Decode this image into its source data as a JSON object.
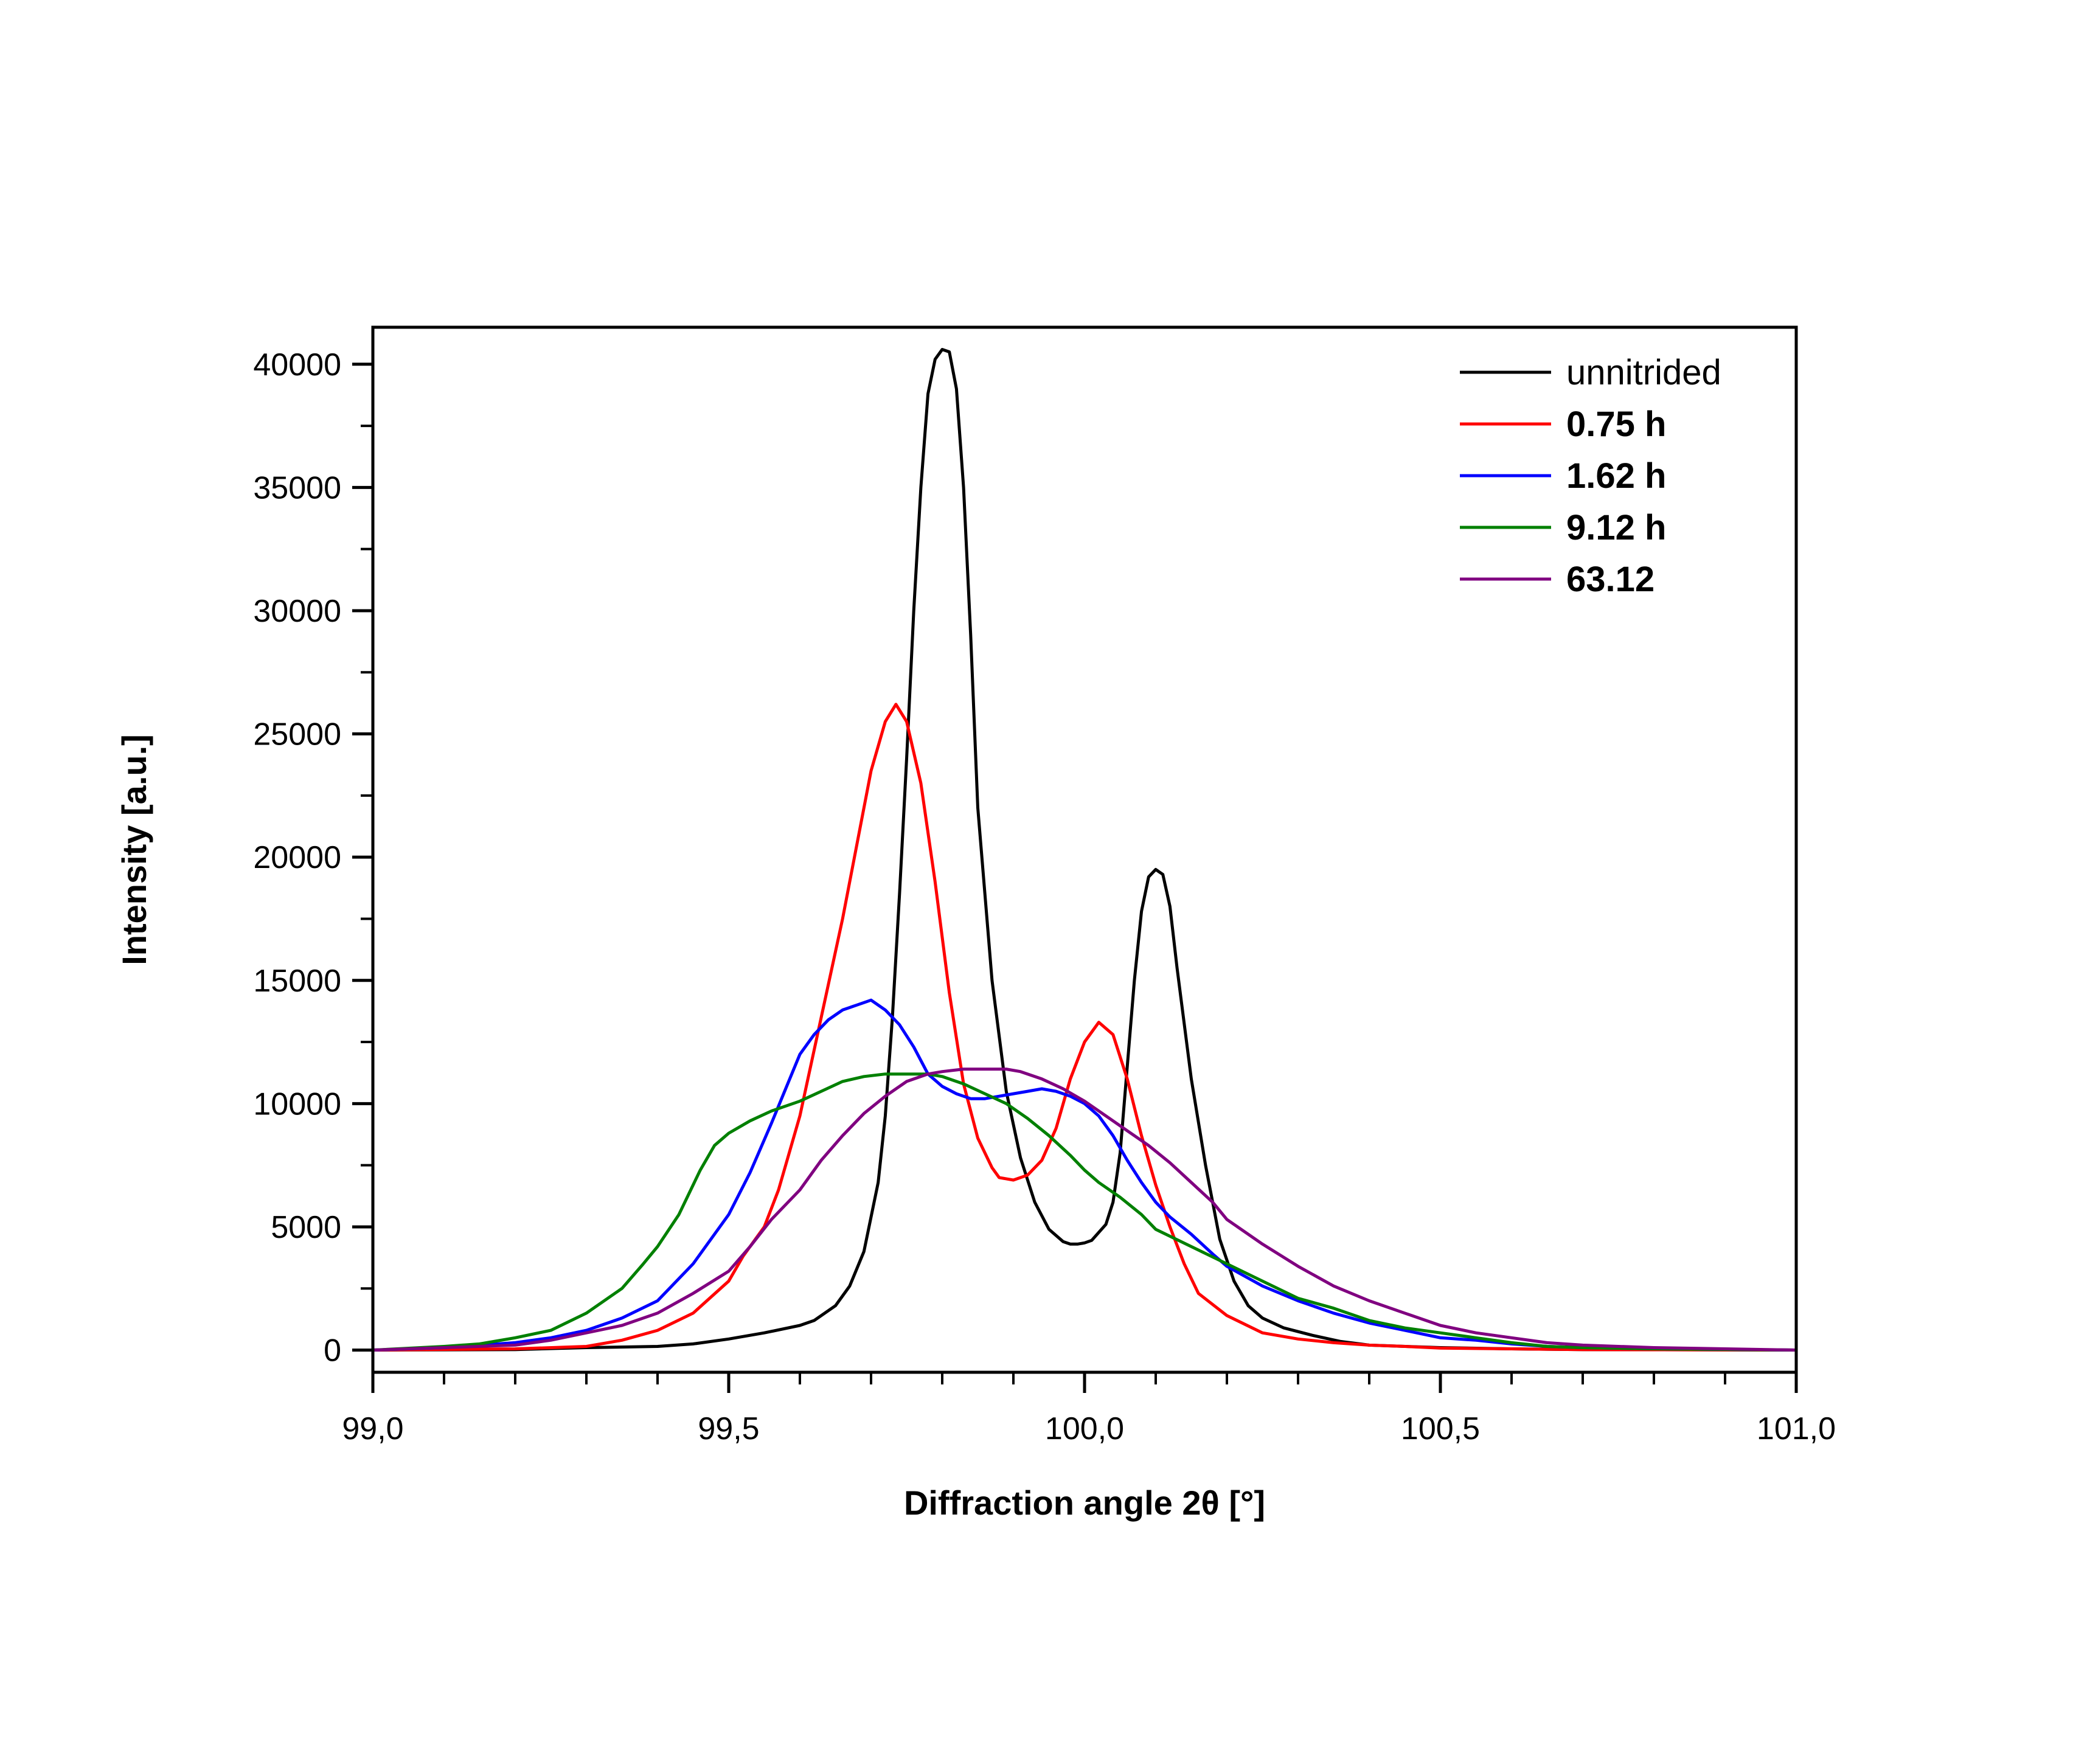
{
  "chart_data": {
    "type": "line",
    "xlabel": "Diffraction angle 2θ [°]",
    "ylabel": "Intensity [a.u.]",
    "xlim": [
      99.0,
      101.0
    ],
    "ylim": [
      -900,
      41500
    ],
    "x_ticks": [
      {
        "value": 99.0,
        "label": "99,0"
      },
      {
        "value": 99.5,
        "label": "99,5"
      },
      {
        "value": 100.0,
        "label": "100,0"
      },
      {
        "value": 100.5,
        "label": "100,5"
      },
      {
        "value": 101.0,
        "label": "101,0"
      }
    ],
    "y_ticks": [
      {
        "value": 0,
        "label": "0"
      },
      {
        "value": 5000,
        "label": "5000"
      },
      {
        "value": 10000,
        "label": "10000"
      },
      {
        "value": 15000,
        "label": "15000"
      },
      {
        "value": 20000,
        "label": "20000"
      },
      {
        "value": 25000,
        "label": "25000"
      },
      {
        "value": 30000,
        "label": "30000"
      },
      {
        "value": 35000,
        "label": "35000"
      },
      {
        "value": 40000,
        "label": "40000"
      }
    ],
    "x_minor_step": 0.1,
    "y_minor_step": 2500,
    "grid": false,
    "legend_position": "top-right",
    "series": [
      {
        "name": "unnitrided",
        "color": "#000000",
        "bold_label": false,
        "points": [
          [
            99.0,
            0
          ],
          [
            99.2,
            20
          ],
          [
            99.3,
            100
          ],
          [
            99.4,
            150
          ],
          [
            99.45,
            250
          ],
          [
            99.5,
            450
          ],
          [
            99.55,
            700
          ],
          [
            99.6,
            1000
          ],
          [
            99.62,
            1200
          ],
          [
            99.65,
            1800
          ],
          [
            99.67,
            2600
          ],
          [
            99.69,
            4000
          ],
          [
            99.71,
            6800
          ],
          [
            99.72,
            9500
          ],
          [
            99.73,
            13500
          ],
          [
            99.74,
            18500
          ],
          [
            99.75,
            24000
          ],
          [
            99.76,
            30000
          ],
          [
            99.77,
            35000
          ],
          [
            99.78,
            38800
          ],
          [
            99.79,
            40200
          ],
          [
            99.8,
            40600
          ],
          [
            99.81,
            40500
          ],
          [
            99.82,
            39000
          ],
          [
            99.83,
            35000
          ],
          [
            99.84,
            29000
          ],
          [
            99.85,
            22000
          ],
          [
            99.87,
            15000
          ],
          [
            99.89,
            10500
          ],
          [
            99.91,
            7800
          ],
          [
            99.93,
            6000
          ],
          [
            99.95,
            4900
          ],
          [
            99.97,
            4400
          ],
          [
            99.98,
            4300
          ],
          [
            99.99,
            4300
          ],
          [
            100.0,
            4350
          ],
          [
            100.01,
            4450
          ],
          [
            100.03,
            5100
          ],
          [
            100.04,
            6000
          ],
          [
            100.05,
            8000
          ],
          [
            100.06,
            11500
          ],
          [
            100.07,
            15000
          ],
          [
            100.08,
            17800
          ],
          [
            100.09,
            19200
          ],
          [
            100.1,
            19500
          ],
          [
            100.11,
            19300
          ],
          [
            100.12,
            18000
          ],
          [
            100.13,
            15500
          ],
          [
            100.15,
            11000
          ],
          [
            100.17,
            7500
          ],
          [
            100.19,
            4500
          ],
          [
            100.21,
            2800
          ],
          [
            100.23,
            1800
          ],
          [
            100.25,
            1300
          ],
          [
            100.28,
            900
          ],
          [
            100.32,
            600
          ],
          [
            100.36,
            350
          ],
          [
            100.4,
            200
          ],
          [
            100.5,
            100
          ],
          [
            100.6,
            50
          ],
          [
            100.7,
            20
          ],
          [
            101.0,
            0
          ]
        ]
      },
      {
        "name": "0.75 h",
        "color": "#ff0000",
        "bold_label": true,
        "points": [
          [
            99.0,
            0
          ],
          [
            99.2,
            50
          ],
          [
            99.3,
            150
          ],
          [
            99.35,
            400
          ],
          [
            99.4,
            800
          ],
          [
            99.45,
            1500
          ],
          [
            99.5,
            2800
          ],
          [
            99.52,
            3800
          ],
          [
            99.55,
            5000
          ],
          [
            99.57,
            6500
          ],
          [
            99.6,
            9500
          ],
          [
            99.63,
            13500
          ],
          [
            99.66,
            17500
          ],
          [
            99.68,
            20500
          ],
          [
            99.7,
            23500
          ],
          [
            99.72,
            25500
          ],
          [
            99.735,
            26200
          ],
          [
            99.75,
            25500
          ],
          [
            99.77,
            23000
          ],
          [
            99.79,
            19000
          ],
          [
            99.81,
            14500
          ],
          [
            99.83,
            10800
          ],
          [
            99.85,
            8600
          ],
          [
            99.87,
            7400
          ],
          [
            99.88,
            7000
          ],
          [
            99.9,
            6900
          ],
          [
            99.92,
            7100
          ],
          [
            99.94,
            7700
          ],
          [
            99.96,
            9000
          ],
          [
            99.98,
            11000
          ],
          [
            100.0,
            12500
          ],
          [
            100.02,
            13300
          ],
          [
            100.04,
            12800
          ],
          [
            100.06,
            11000
          ],
          [
            100.08,
            8700
          ],
          [
            100.1,
            6700
          ],
          [
            100.12,
            5000
          ],
          [
            100.14,
            3500
          ],
          [
            100.16,
            2300
          ],
          [
            100.2,
            1400
          ],
          [
            100.25,
            700
          ],
          [
            100.3,
            450
          ],
          [
            100.35,
            300
          ],
          [
            100.4,
            200
          ],
          [
            100.45,
            150
          ],
          [
            100.5,
            80
          ],
          [
            100.6,
            50
          ],
          [
            100.7,
            20
          ],
          [
            101.0,
            0
          ]
        ]
      },
      {
        "name": "1.62 h",
        "color": "#0000ff",
        "bold_label": true,
        "points": [
          [
            99.0,
            0
          ],
          [
            99.1,
            100
          ],
          [
            99.2,
            300
          ],
          [
            99.25,
            500
          ],
          [
            99.3,
            800
          ],
          [
            99.35,
            1300
          ],
          [
            99.4,
            2000
          ],
          [
            99.45,
            3500
          ],
          [
            99.5,
            5500
          ],
          [
            99.53,
            7200
          ],
          [
            99.56,
            9200
          ],
          [
            99.58,
            10600
          ],
          [
            99.6,
            12000
          ],
          [
            99.62,
            12800
          ],
          [
            99.64,
            13400
          ],
          [
            99.66,
            13800
          ],
          [
            99.68,
            14000
          ],
          [
            99.7,
            14200
          ],
          [
            99.72,
            13800
          ],
          [
            99.74,
            13200
          ],
          [
            99.76,
            12300
          ],
          [
            99.78,
            11200
          ],
          [
            99.8,
            10700
          ],
          [
            99.82,
            10400
          ],
          [
            99.84,
            10200
          ],
          [
            99.86,
            10200
          ],
          [
            99.88,
            10300
          ],
          [
            99.9,
            10400
          ],
          [
            99.92,
            10500
          ],
          [
            99.94,
            10600
          ],
          [
            99.96,
            10500
          ],
          [
            99.98,
            10300
          ],
          [
            100.0,
            10000
          ],
          [
            100.02,
            9500
          ],
          [
            100.04,
            8700
          ],
          [
            100.06,
            7700
          ],
          [
            100.08,
            6800
          ],
          [
            100.1,
            6000
          ],
          [
            100.12,
            5400
          ],
          [
            100.15,
            4700
          ],
          [
            100.18,
            3900
          ],
          [
            100.2,
            3400
          ],
          [
            100.25,
            2600
          ],
          [
            100.3,
            2000
          ],
          [
            100.35,
            1500
          ],
          [
            100.4,
            1100
          ],
          [
            100.45,
            800
          ],
          [
            100.5,
            500
          ],
          [
            100.55,
            400
          ],
          [
            100.6,
            250
          ],
          [
            100.65,
            150
          ],
          [
            100.7,
            100
          ],
          [
            100.8,
            50
          ],
          [
            101.0,
            0
          ]
        ]
      },
      {
        "name": "9.12 h",
        "color": "#008000",
        "bold_label": true,
        "points": [
          [
            99.0,
            0
          ],
          [
            99.1,
            150
          ],
          [
            99.15,
            250
          ],
          [
            99.2,
            500
          ],
          [
            99.25,
            800
          ],
          [
            99.3,
            1500
          ],
          [
            99.35,
            2500
          ],
          [
            99.38,
            3500
          ],
          [
            99.4,
            4200
          ],
          [
            99.43,
            5500
          ],
          [
            99.46,
            7300
          ],
          [
            99.48,
            8300
          ],
          [
            99.5,
            8800
          ],
          [
            99.53,
            9300
          ],
          [
            99.56,
            9700
          ],
          [
            99.6,
            10100
          ],
          [
            99.63,
            10500
          ],
          [
            99.66,
            10900
          ],
          [
            99.69,
            11100
          ],
          [
            99.72,
            11200
          ],
          [
            99.75,
            11200
          ],
          [
            99.78,
            11200
          ],
          [
            99.8,
            11100
          ],
          [
            99.83,
            10800
          ],
          [
            99.86,
            10400
          ],
          [
            99.89,
            10000
          ],
          [
            99.92,
            9400
          ],
          [
            99.95,
            8700
          ],
          [
            99.98,
            7900
          ],
          [
            100.0,
            7300
          ],
          [
            100.02,
            6800
          ],
          [
            100.05,
            6200
          ],
          [
            100.08,
            5500
          ],
          [
            100.1,
            4900
          ],
          [
            100.15,
            4200
          ],
          [
            100.2,
            3500
          ],
          [
            100.25,
            2800
          ],
          [
            100.3,
            2100
          ],
          [
            100.35,
            1700
          ],
          [
            100.4,
            1200
          ],
          [
            100.45,
            900
          ],
          [
            100.5,
            700
          ],
          [
            100.55,
            500
          ],
          [
            100.6,
            300
          ],
          [
            100.65,
            150
          ],
          [
            100.7,
            100
          ],
          [
            100.8,
            50
          ],
          [
            101.0,
            0
          ]
        ]
      },
      {
        "name": "63.12",
        "color": "#800080",
        "bold_label": true,
        "points": [
          [
            99.0,
            0
          ],
          [
            99.1,
            100
          ],
          [
            99.2,
            200
          ],
          [
            99.25,
            400
          ],
          [
            99.3,
            700
          ],
          [
            99.35,
            1000
          ],
          [
            99.4,
            1500
          ],
          [
            99.45,
            2300
          ],
          [
            99.5,
            3200
          ],
          [
            99.53,
            4200
          ],
          [
            99.56,
            5300
          ],
          [
            99.6,
            6500
          ],
          [
            99.63,
            7700
          ],
          [
            99.66,
            8700
          ],
          [
            99.69,
            9600
          ],
          [
            99.72,
            10300
          ],
          [
            99.75,
            10900
          ],
          [
            99.78,
            11200
          ],
          [
            99.8,
            11300
          ],
          [
            99.83,
            11400
          ],
          [
            99.86,
            11400
          ],
          [
            99.89,
            11400
          ],
          [
            99.91,
            11300
          ],
          [
            99.94,
            11000
          ],
          [
            99.97,
            10600
          ],
          [
            100.0,
            10100
          ],
          [
            100.03,
            9500
          ],
          [
            100.06,
            8900
          ],
          [
            100.09,
            8300
          ],
          [
            100.12,
            7600
          ],
          [
            100.15,
            6800
          ],
          [
            100.18,
            6000
          ],
          [
            100.2,
            5300
          ],
          [
            100.25,
            4300
          ],
          [
            100.3,
            3400
          ],
          [
            100.35,
            2600
          ],
          [
            100.4,
            2000
          ],
          [
            100.45,
            1500
          ],
          [
            100.5,
            1000
          ],
          [
            100.55,
            700
          ],
          [
            100.6,
            500
          ],
          [
            100.65,
            300
          ],
          [
            100.7,
            200
          ],
          [
            100.8,
            100
          ],
          [
            101.0,
            0
          ]
        ]
      }
    ]
  }
}
